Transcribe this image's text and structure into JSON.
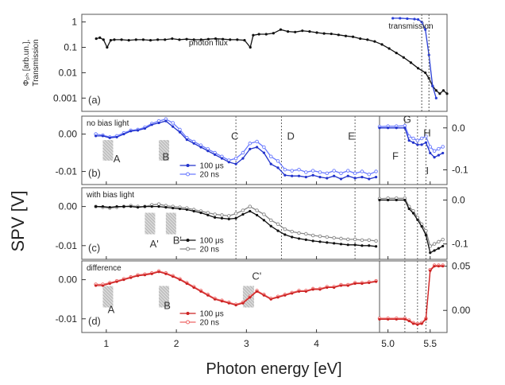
{
  "chart_data": [
    {
      "panel": "a",
      "type": "line",
      "ylabel_lines": [
        "Φₚₕ [arb.un.],",
        "Transmission"
      ],
      "yscale": "log",
      "ylim": [
        0.0003,
        2
      ],
      "yticks": [
        1,
        0.1,
        0.01,
        0.001
      ],
      "ytick_labels": [
        "1",
        "0.1",
        "0.01",
        "0.001"
      ],
      "panel_label": "(a)",
      "series": [
        {
          "name": "photon flux",
          "color": "#111111",
          "x": [
            0.85,
            0.9,
            0.95,
            1.0,
            1.05,
            1.1,
            1.2,
            1.3,
            1.4,
            1.5,
            1.6,
            1.7,
            1.8,
            1.9,
            2.0,
            2.1,
            2.2,
            2.3,
            2.4,
            2.5,
            2.6,
            2.7,
            2.8,
            2.9,
            2.98,
            3.02,
            3.1,
            3.2,
            3.3,
            3.4,
            3.5,
            3.6,
            3.7,
            3.8,
            3.9,
            4.0,
            4.1,
            4.2,
            4.3,
            4.4,
            4.5,
            4.6,
            4.7,
            4.8,
            4.9,
            5.0,
            5.1,
            5.2,
            5.3,
            5.4,
            5.45,
            5.5,
            5.55,
            5.6,
            5.65,
            5.7
          ],
          "y": [
            0.22,
            0.24,
            0.2,
            0.1,
            0.19,
            0.2,
            0.2,
            0.19,
            0.2,
            0.2,
            0.19,
            0.2,
            0.2,
            0.22,
            0.2,
            0.21,
            0.2,
            0.2,
            0.21,
            0.22,
            0.21,
            0.2,
            0.2,
            0.19,
            0.1,
            0.3,
            0.33,
            0.33,
            0.36,
            0.5,
            0.42,
            0.4,
            0.45,
            0.42,
            0.38,
            0.35,
            0.34,
            0.31,
            0.28,
            0.26,
            0.22,
            0.2,
            0.17,
            0.13,
            0.09,
            0.06,
            0.04,
            0.025,
            0.015,
            0.01,
            0.006,
            0.003,
            0.002,
            0.0015,
            0.002,
            0.0015
          ]
        },
        {
          "name": "transmission",
          "color": "#2a3fd6",
          "x": [
            4.95,
            5.05,
            5.15,
            5.25,
            5.3,
            5.35,
            5.4,
            5.45,
            5.5,
            5.55
          ],
          "y": [
            1.4,
            1.4,
            1.35,
            1.3,
            1.25,
            1.0,
            0.5,
            0.05,
            0.003,
            0.001
          ]
        }
      ]
    },
    {
      "panel": "b",
      "type": "line",
      "panel_label": "(b)",
      "annotation": "no bias light",
      "ylim_left": [
        -0.0135,
        0.0048
      ],
      "yticks_left": [
        0,
        -0.01
      ],
      "ytick_labels_left": [
        "0.00",
        "-0.01"
      ],
      "ylim_right": [
        -0.135,
        0.028
      ],
      "yticks_right": [
        0,
        -0.1
      ],
      "ytick_labels_right": [
        "0.0",
        "-0.1"
      ],
      "letters": [
        "A",
        "B",
        "C",
        "D",
        "E",
        "F",
        "G",
        "H",
        "I"
      ],
      "series": [
        {
          "name": "100 μs",
          "color": "#2233cc",
          "x": [
            0.85,
            0.95,
            1.05,
            1.15,
            1.25,
            1.35,
            1.45,
            1.55,
            1.65,
            1.75,
            1.85,
            1.95,
            2.05,
            2.15,
            2.25,
            2.35,
            2.45,
            2.55,
            2.65,
            2.75,
            2.85,
            2.95,
            3.05,
            3.15,
            3.25,
            3.35,
            3.45,
            3.55,
            3.65,
            3.75,
            3.85,
            3.95,
            4.05,
            4.15,
            4.25,
            4.35,
            4.45,
            4.55,
            4.65,
            4.75,
            4.85
          ],
          "y": [
            -0.0005,
            -0.0005,
            -0.001,
            -0.0008,
            0.0,
            0.0008,
            0.001,
            0.0015,
            0.0025,
            0.003,
            0.0035,
            0.002,
            0.0005,
            -0.0015,
            -0.0025,
            -0.0035,
            -0.0045,
            -0.0055,
            -0.0065,
            -0.0075,
            -0.008,
            -0.0065,
            -0.004,
            -0.0035,
            -0.005,
            -0.008,
            -0.009,
            -0.011,
            -0.0112,
            -0.0112,
            -0.0115,
            -0.011,
            -0.0115,
            -0.0118,
            -0.0112,
            -0.012,
            -0.0112,
            -0.0118,
            -0.0115,
            -0.012,
            -0.0115
          ]
        },
        {
          "name": "20 ns",
          "color": "#6b7bff",
          "x": [
            0.85,
            0.95,
            1.05,
            1.15,
            1.25,
            1.35,
            1.45,
            1.55,
            1.65,
            1.75,
            1.85,
            1.95,
            2.05,
            2.15,
            2.25,
            2.35,
            2.45,
            2.55,
            2.65,
            2.75,
            2.85,
            2.95,
            3.05,
            3.15,
            3.25,
            3.35,
            3.45,
            3.55,
            3.65,
            3.75,
            3.85,
            3.95,
            4.05,
            4.15,
            4.25,
            4.35,
            4.45,
            4.55,
            4.65,
            4.75,
            4.85
          ],
          "y": [
            0.0,
            -0.0003,
            -0.0008,
            -0.0005,
            0.0003,
            0.001,
            0.0012,
            0.0018,
            0.0028,
            0.0035,
            0.004,
            0.003,
            0.0012,
            -0.001,
            -0.002,
            -0.003,
            -0.004,
            -0.005,
            -0.006,
            -0.007,
            -0.0065,
            -0.005,
            -0.0025,
            -0.002,
            -0.0035,
            -0.006,
            -0.0072,
            -0.0095,
            -0.0098,
            -0.0095,
            -0.0102,
            -0.0098,
            -0.0102,
            -0.0105,
            -0.0098,
            -0.0105,
            -0.0098,
            -0.0105,
            -0.01,
            -0.0108,
            -0.01
          ]
        },
        {
          "name": "100 μs (right)",
          "color": "#2233cc",
          "axis": "right",
          "x": [
            4.9,
            5.0,
            5.1,
            5.2,
            5.25,
            5.3,
            5.35,
            5.4,
            5.45,
            5.5,
            5.55,
            5.6,
            5.65
          ],
          "y": [
            0.0,
            0.0,
            0.0,
            0.0,
            -0.03,
            -0.035,
            -0.04,
            -0.04,
            -0.035,
            -0.06,
            -0.07,
            -0.065,
            -0.06
          ]
        },
        {
          "name": "20 ns (right)",
          "color": "#6b7bff",
          "axis": "right",
          "x": [
            4.9,
            5.0,
            5.1,
            5.2,
            5.25,
            5.3,
            5.35,
            5.4,
            5.45,
            5.5,
            5.55,
            5.6,
            5.65
          ],
          "y": [
            0.003,
            0.004,
            0.004,
            0.005,
            -0.02,
            -0.025,
            -0.03,
            -0.025,
            -0.02,
            -0.045,
            -0.055,
            -0.05,
            -0.045
          ]
        }
      ]
    },
    {
      "panel": "c",
      "type": "line",
      "panel_label": "(c)",
      "annotation": "with bias light",
      "ylim_left": [
        -0.0135,
        0.0048
      ],
      "yticks_left": [
        0,
        -0.01
      ],
      "ytick_labels_left": [
        "0.00",
        "-0.01"
      ],
      "ylim_right": [
        -0.135,
        0.028
      ],
      "yticks_right": [
        0,
        -0.1
      ],
      "ytick_labels_right": [
        "0.0",
        "-0.1"
      ],
      "letters": [
        "A'",
        "B'"
      ],
      "series": [
        {
          "name": "100 μs",
          "color": "#111111",
          "x": [
            0.85,
            0.95,
            1.05,
            1.15,
            1.25,
            1.35,
            1.45,
            1.55,
            1.65,
            1.75,
            1.85,
            1.95,
            2.05,
            2.15,
            2.25,
            2.35,
            2.45,
            2.55,
            2.65,
            2.75,
            2.85,
            2.95,
            3.05,
            3.15,
            3.25,
            3.35,
            3.45,
            3.55,
            3.65,
            3.75,
            3.85,
            3.95,
            4.05,
            4.15,
            4.25,
            4.35,
            4.45,
            4.55,
            4.65,
            4.75,
            4.85
          ],
          "y": [
            0.0,
            0.0,
            -0.0002,
            0.0,
            0.0,
            0.0,
            -0.0002,
            0.0,
            0.0,
            0.0,
            -0.0002,
            -0.0004,
            -0.0006,
            -0.0008,
            -0.0012,
            -0.0016,
            -0.0022,
            -0.0028,
            -0.003,
            -0.0032,
            -0.003,
            -0.002,
            -0.0012,
            -0.0022,
            -0.0035,
            -0.005,
            -0.0062,
            -0.0072,
            -0.0078,
            -0.0082,
            -0.0085,
            -0.0088,
            -0.009,
            -0.0092,
            -0.0094,
            -0.0096,
            -0.0098,
            -0.0098,
            -0.01,
            -0.01,
            -0.0102
          ]
        },
        {
          "name": "20 ns",
          "color": "#888888",
          "x": [
            0.85,
            0.95,
            1.05,
            1.15,
            1.25,
            1.35,
            1.45,
            1.55,
            1.65,
            1.75,
            1.85,
            1.95,
            2.05,
            2.15,
            2.25,
            2.35,
            2.45,
            2.55,
            2.65,
            2.75,
            2.85,
            2.95,
            3.05,
            3.15,
            3.25,
            3.35,
            3.45,
            3.55,
            3.65,
            3.75,
            3.85,
            3.95,
            4.05,
            4.15,
            4.25,
            4.35,
            4.45,
            4.55,
            4.65,
            4.75,
            4.85
          ],
          "y": [
            0.0,
            -0.0002,
            -0.0004,
            -0.0002,
            0.0,
            0.0002,
            0.0,
            0.0,
            0.0004,
            0.0006,
            0.0002,
            0.0,
            -0.0002,
            -0.0004,
            -0.0008,
            -0.0012,
            -0.0016,
            -0.002,
            -0.0022,
            -0.0024,
            -0.0018,
            -0.001,
            0.0,
            -0.001,
            -0.002,
            -0.0035,
            -0.0045,
            -0.0058,
            -0.0064,
            -0.0068,
            -0.007,
            -0.0074,
            -0.0076,
            -0.0078,
            -0.008,
            -0.0082,
            -0.0084,
            -0.0084,
            -0.0086,
            -0.0086,
            -0.0088
          ]
        },
        {
          "name": "100 μs (right)",
          "color": "#111111",
          "axis": "right",
          "x": [
            4.9,
            5.0,
            5.1,
            5.2,
            5.25,
            5.3,
            5.35,
            5.4,
            5.45,
            5.5,
            5.55,
            5.6,
            5.65
          ],
          "y": [
            0.0,
            0.0,
            0.0,
            0.0,
            -0.02,
            -0.03,
            -0.045,
            -0.06,
            -0.08,
            -0.12,
            -0.115,
            -0.11,
            -0.105
          ]
        },
        {
          "name": "20 ns (right)",
          "color": "#888888",
          "axis": "right",
          "x": [
            4.9,
            5.0,
            5.1,
            5.2,
            5.25,
            5.3,
            5.35,
            5.4,
            5.45,
            5.5,
            5.55,
            5.6,
            5.65
          ],
          "y": [
            0.003,
            0.004,
            0.004,
            0.004,
            -0.015,
            -0.025,
            -0.04,
            -0.055,
            -0.07,
            -0.105,
            -0.1,
            -0.095,
            -0.09
          ]
        }
      ]
    },
    {
      "panel": "d",
      "type": "line",
      "panel_label": "(d)",
      "annotation": "difference",
      "ylim_left": [
        -0.0135,
        0.0048
      ],
      "yticks_left": [
        0,
        -0.01
      ],
      "ytick_labels_left": [
        "0.00",
        "-0.01"
      ],
      "ylim_right": [
        -0.025,
        0.056
      ],
      "yticks_right": [
        0.05,
        0
      ],
      "ytick_labels_right": [
        "0.05",
        "0.00"
      ],
      "letters": [
        "A",
        "B",
        "C'"
      ],
      "series": [
        {
          "name": "100 μs",
          "color": "#cc2222",
          "x": [
            0.85,
            0.95,
            1.05,
            1.15,
            1.25,
            1.35,
            1.45,
            1.55,
            1.65,
            1.75,
            1.85,
            1.95,
            2.05,
            2.15,
            2.25,
            2.35,
            2.45,
            2.55,
            2.65,
            2.75,
            2.85,
            2.95,
            3.05,
            3.15,
            3.25,
            3.35,
            3.45,
            3.55,
            3.65,
            3.75,
            3.85,
            3.95,
            4.05,
            4.15,
            4.25,
            4.35,
            4.45,
            4.55,
            4.65,
            4.75,
            4.85
          ],
          "y": [
            -0.0015,
            -0.0015,
            -0.001,
            -0.0005,
            0.0,
            0.0005,
            0.001,
            0.0012,
            0.0015,
            0.002,
            0.0015,
            0.0008,
            0.0,
            -0.001,
            -0.002,
            -0.003,
            -0.004,
            -0.005,
            -0.0055,
            -0.006,
            -0.0065,
            -0.006,
            -0.0045,
            -0.003,
            -0.004,
            -0.005,
            -0.0045,
            -0.004,
            -0.0035,
            -0.003,
            -0.003,
            -0.0025,
            -0.0025,
            -0.002,
            -0.002,
            -0.0015,
            -0.0015,
            -0.001,
            -0.001,
            -0.0008,
            -0.0005
          ]
        },
        {
          "name": "20 ns",
          "color": "#ee6666",
          "x": [
            0.85,
            0.95,
            1.05,
            1.15,
            1.25,
            1.35,
            1.45,
            1.55,
            1.65,
            1.75,
            1.85,
            1.95,
            2.05,
            2.15,
            2.25,
            2.35,
            2.45,
            2.55,
            2.65,
            2.75,
            2.85,
            2.95,
            3.05,
            3.15,
            3.25,
            3.35,
            3.45,
            3.55,
            3.65,
            3.75,
            3.85,
            3.95,
            4.05,
            4.15,
            4.25,
            4.35,
            4.45,
            4.55,
            4.65,
            4.75,
            4.85
          ],
          "y": [
            -0.0012,
            -0.0012,
            -0.0008,
            -0.0003,
            0.0002,
            0.0007,
            0.0012,
            0.0014,
            0.0017,
            0.0022,
            0.0017,
            0.001,
            0.0002,
            -0.0008,
            -0.0018,
            -0.0028,
            -0.0038,
            -0.0048,
            -0.0053,
            -0.0058,
            -0.0063,
            -0.0058,
            -0.0043,
            -0.0028,
            -0.0038,
            -0.0048,
            -0.0043,
            -0.0038,
            -0.0033,
            -0.0028,
            -0.0028,
            -0.0023,
            -0.0023,
            -0.0018,
            -0.0018,
            -0.0013,
            -0.0013,
            -0.0008,
            -0.0008,
            -0.0006,
            -0.0003
          ]
        },
        {
          "name": "100 μs (right)",
          "color": "#cc2222",
          "axis": "right",
          "x": [
            4.9,
            5.0,
            5.1,
            5.2,
            5.25,
            5.3,
            5.35,
            5.4,
            5.45,
            5.5,
            5.55,
            5.6,
            5.65
          ],
          "y": [
            -0.01,
            -0.01,
            -0.01,
            -0.01,
            -0.012,
            -0.015,
            -0.016,
            -0.015,
            -0.01,
            0.045,
            0.05,
            0.05,
            0.05
          ]
        },
        {
          "name": "20 ns (right)",
          "color": "#ee6666",
          "axis": "right",
          "x": [
            4.9,
            5.0,
            5.1,
            5.2,
            5.25,
            5.3,
            5.35,
            5.4,
            5.45,
            5.5,
            5.55,
            5.6,
            5.65
          ],
          "y": [
            -0.009,
            -0.009,
            -0.009,
            -0.009,
            -0.011,
            -0.014,
            -0.015,
            -0.014,
            -0.009,
            0.046,
            0.051,
            0.051,
            0.051
          ]
        }
      ]
    }
  ],
  "shared": {
    "ylabel": "SPV [V]",
    "xlabel": "Photon energy [eV]",
    "xticks_left": [
      1,
      2,
      3,
      4
    ],
    "xtick_labels_left": [
      "1",
      "2",
      "3",
      "4"
    ],
    "xticks_right": [
      5.0,
      5.5
    ],
    "xtick_labels_right": [
      "5.0",
      "5.5"
    ],
    "xlim_left": [
      0.65,
      4.9
    ],
    "xlim_right": [
      4.9,
      5.7
    ],
    "legend_b": [
      "100 μs",
      "20 ns"
    ],
    "legend_c": [
      "100 μs",
      "20 ns"
    ],
    "legend_d": [
      "100 μs",
      "20 ns"
    ],
    "colors": {
      "panel_b": "#2233cc",
      "panel_c": "#111111",
      "panel_d": "#cc2222"
    }
  }
}
